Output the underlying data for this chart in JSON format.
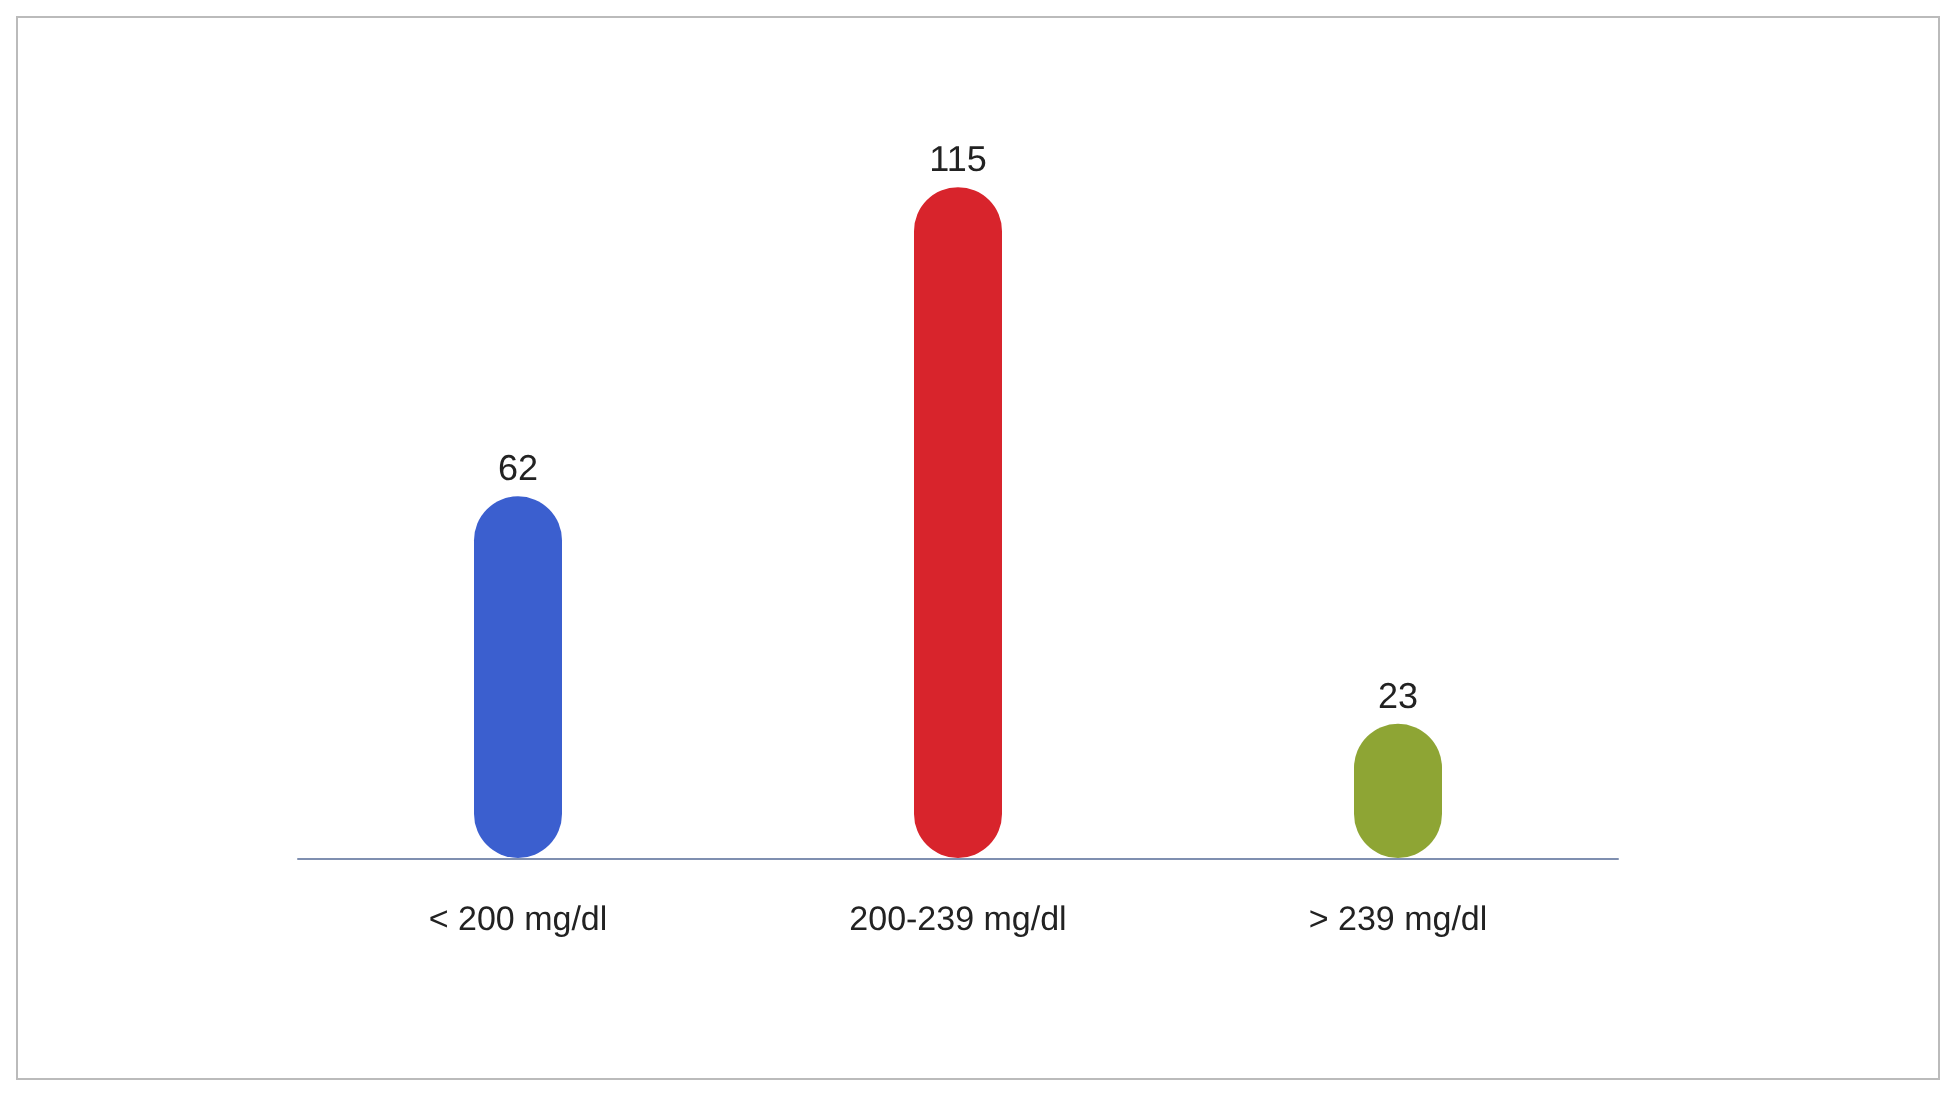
{
  "chart_data": {
    "type": "bar",
    "categories": [
      "< 200 mg/dl",
      "200-239 mg/dl",
      "> 239 mg/dl"
    ],
    "values": [
      62,
      115,
      23
    ],
    "colors": [
      "#3b5fcf",
      "#d8242c",
      "#8ea534"
    ],
    "data_labels": true,
    "tick_labels": "x",
    "grid": false
  }
}
